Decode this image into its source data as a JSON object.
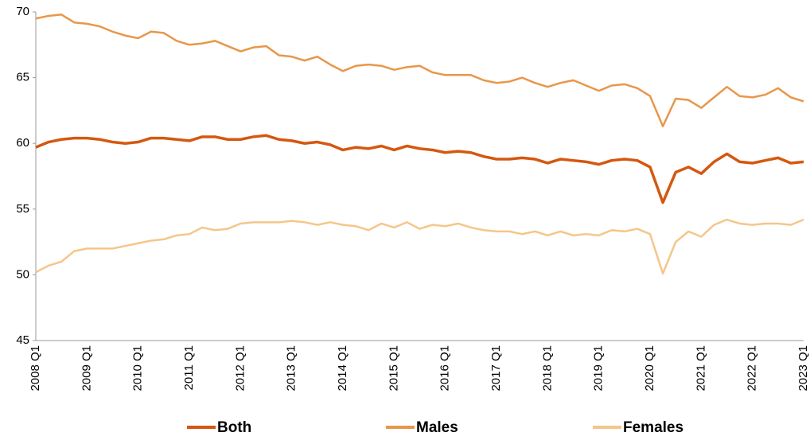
{
  "chart_data": {
    "type": "line",
    "categories": [
      "2008 Q1",
      null,
      null,
      null,
      "2009 Q1",
      null,
      null,
      null,
      "2010 Q1",
      null,
      null,
      null,
      "2011 Q1",
      null,
      null,
      null,
      "2012 Q1",
      null,
      null,
      null,
      "2013 Q1",
      null,
      null,
      null,
      "2014 Q1",
      null,
      null,
      null,
      "2015 Q1",
      null,
      null,
      null,
      "2016 Q1",
      null,
      null,
      null,
      "2017 Q1",
      null,
      null,
      null,
      "2018 Q1",
      null,
      null,
      null,
      "2019 Q1",
      null,
      null,
      null,
      "2020 Q1",
      null,
      null,
      null,
      "2021 Q1",
      null,
      null,
      null,
      "2022 Q1",
      null,
      null,
      null,
      "2023 Q1"
    ],
    "series": [
      {
        "name": "Both",
        "color": "#d4580f",
        "values": [
          59.7,
          60.1,
          60.3,
          60.4,
          60.4,
          60.3,
          60.1,
          60.0,
          60.1,
          60.4,
          60.4,
          60.3,
          60.2,
          60.5,
          60.5,
          60.3,
          60.3,
          60.5,
          60.6,
          60.3,
          60.2,
          60.0,
          60.1,
          59.9,
          59.5,
          59.7,
          59.6,
          59.8,
          59.5,
          59.8,
          59.6,
          59.5,
          59.3,
          59.4,
          59.3,
          59.0,
          58.8,
          58.8,
          58.9,
          58.8,
          58.5,
          58.8,
          58.7,
          58.6,
          58.4,
          58.7,
          58.8,
          58.7,
          58.2,
          55.5,
          57.8,
          58.2,
          57.7,
          58.6,
          59.2,
          58.6,
          58.5,
          58.7,
          58.9,
          58.5,
          58.6
        ]
      },
      {
        "name": "Males",
        "color": "#e8974a",
        "values": [
          69.5,
          69.7,
          69.8,
          69.2,
          69.1,
          68.9,
          68.5,
          68.2,
          68.0,
          68.5,
          68.4,
          67.8,
          67.5,
          67.6,
          67.8,
          67.4,
          67.0,
          67.3,
          67.4,
          66.7,
          66.6,
          66.3,
          66.6,
          66.0,
          65.5,
          65.9,
          66.0,
          65.9,
          65.6,
          65.8,
          65.9,
          65.4,
          65.2,
          65.2,
          65.2,
          64.8,
          64.6,
          64.7,
          65.0,
          64.6,
          64.3,
          64.6,
          64.8,
          64.4,
          64.0,
          64.4,
          64.5,
          64.2,
          63.6,
          61.3,
          63.4,
          63.3,
          62.7,
          63.5,
          64.3,
          63.6,
          63.5,
          63.7,
          64.2,
          63.5,
          63.2
        ]
      },
      {
        "name": "Females",
        "color": "#f5c68a",
        "values": [
          50.2,
          50.7,
          51.0,
          51.8,
          52.0,
          52.0,
          52.0,
          52.2,
          52.4,
          52.6,
          52.7,
          53.0,
          53.1,
          53.6,
          53.4,
          53.5,
          53.9,
          54.0,
          54.0,
          54.0,
          54.1,
          54.0,
          53.8,
          54.0,
          53.8,
          53.7,
          53.4,
          53.9,
          53.6,
          54.0,
          53.5,
          53.8,
          53.7,
          53.9,
          53.6,
          53.4,
          53.3,
          53.3,
          53.1,
          53.3,
          53.0,
          53.3,
          53.0,
          53.1,
          53.0,
          53.4,
          53.3,
          53.5,
          53.1,
          50.1,
          52.5,
          53.3,
          52.9,
          53.8,
          54.2,
          53.9,
          53.8,
          53.9,
          53.9,
          53.8,
          54.2
        ]
      }
    ],
    "ylim": [
      45,
      70
    ],
    "yticks": [
      45,
      50,
      55,
      60,
      65,
      70
    ],
    "legend": "bottom"
  }
}
